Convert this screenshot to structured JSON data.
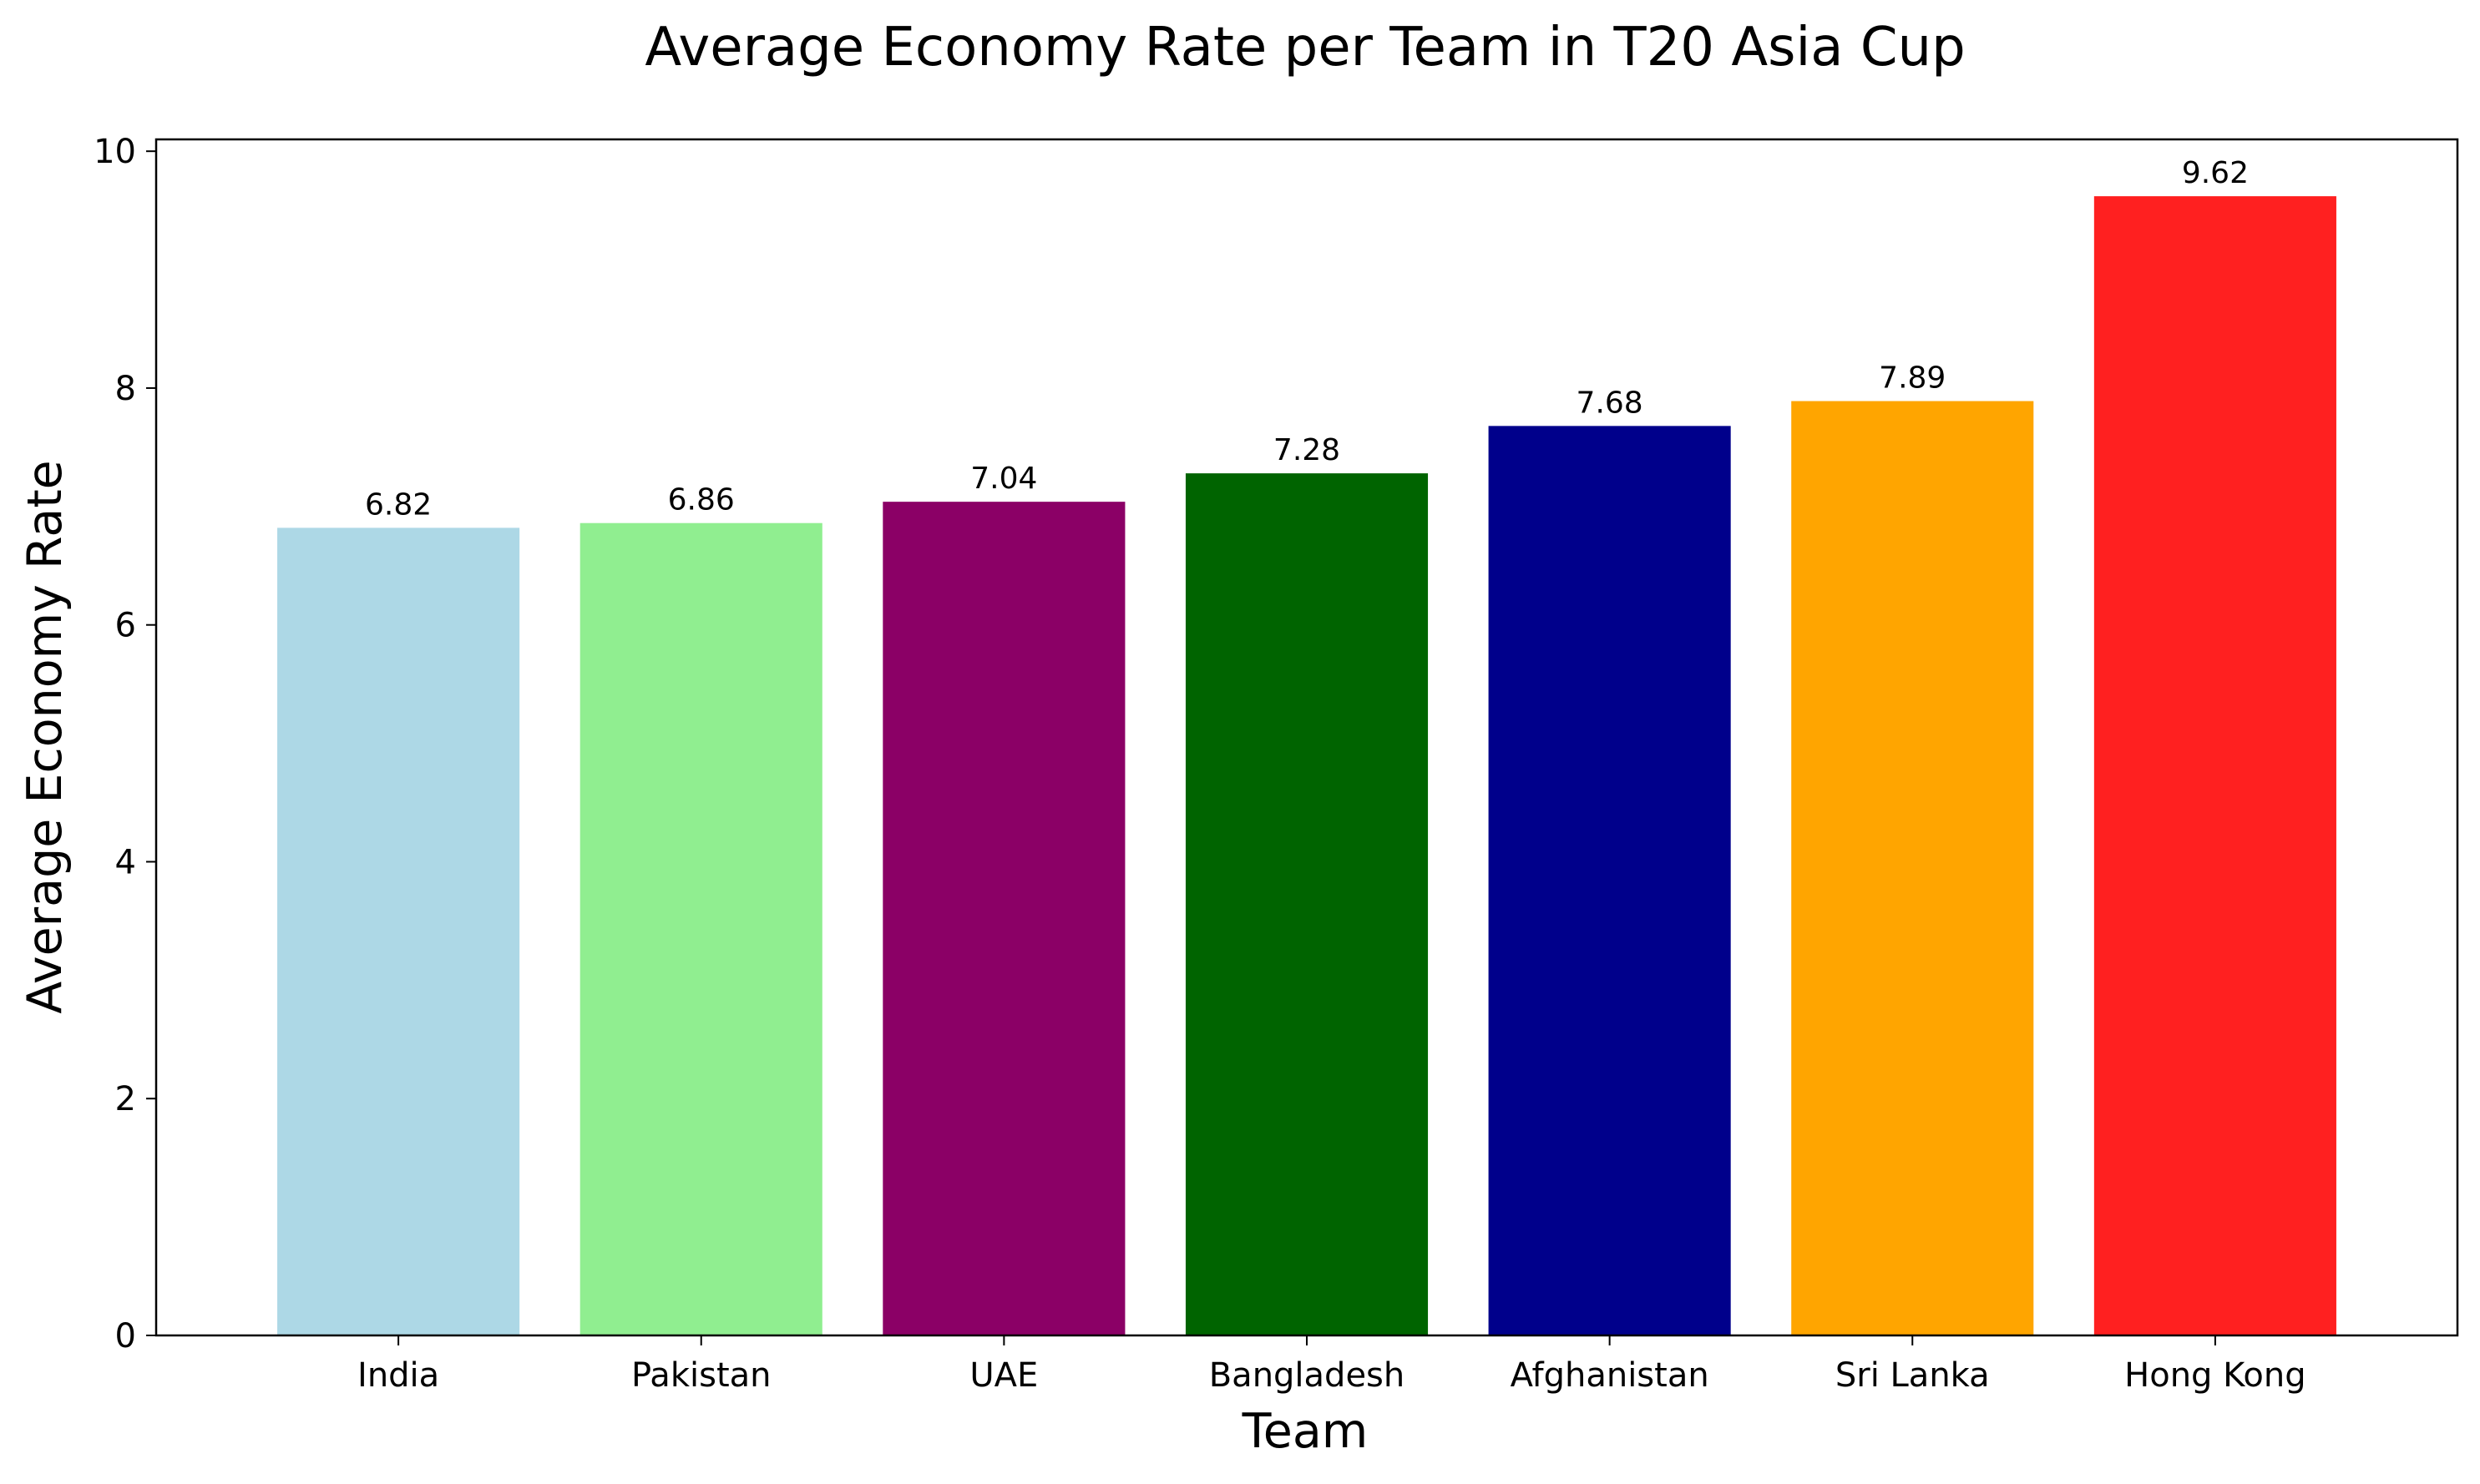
{
  "chart_data": {
    "type": "bar",
    "title": "Average Economy Rate per Team in T20 Asia Cup",
    "xlabel": "Team",
    "ylabel": "Average Economy Rate",
    "categories": [
      "India",
      "Pakistan",
      "UAE",
      "Bangladesh",
      "Afghanistan",
      "Sri Lanka",
      "Hong Kong"
    ],
    "values": [
      6.82,
      6.86,
      7.04,
      7.28,
      7.68,
      7.89,
      9.62
    ],
    "value_labels": [
      "6.82",
      "6.86",
      "7.04",
      "7.28",
      "7.68",
      "7.89",
      "9.62"
    ],
    "colors": [
      "#add8e6",
      "#90ee90",
      "#8b0066",
      "#006400",
      "#00008b",
      "#ffa500",
      "#ff2020"
    ],
    "ylim": [
      0,
      10.1
    ],
    "yticks": [
      0,
      2,
      4,
      6,
      8,
      10
    ],
    "ytick_labels": [
      "0",
      "2",
      "4",
      "6",
      "8",
      "10"
    ],
    "grid": false,
    "legend": "none"
  }
}
